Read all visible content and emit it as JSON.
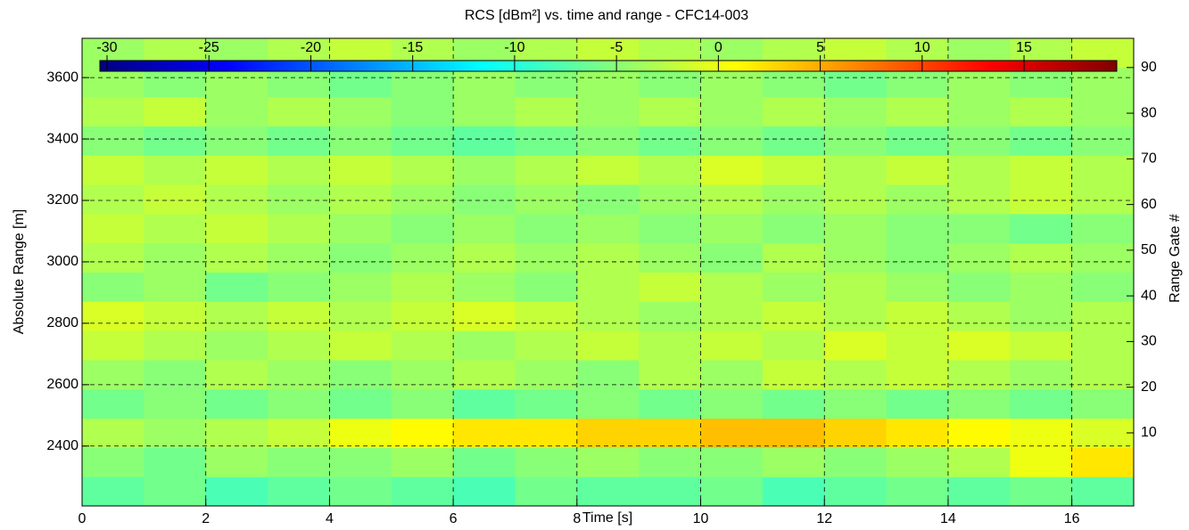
{
  "chart_data": {
    "type": "heatmap",
    "title": "RCS [dBm²] vs. time and range - CFC14-003",
    "x_label": "Time [s]",
    "y_label": "Absolute Range [m]",
    "y2_label": "Range Gate #",
    "xlim": [
      0,
      17
    ],
    "xticks": [
      0,
      2,
      4,
      6,
      8,
      10,
      12,
      14,
      16
    ],
    "ylim": [
      2205,
      3728
    ],
    "yticks": [
      2400,
      2600,
      2800,
      3000,
      3200,
      3400,
      3600
    ],
    "y2lim": [
      -6,
      96.4
    ],
    "y2ticks": [
      10,
      20,
      30,
      40,
      50,
      60,
      70,
      80,
      90
    ],
    "clim": [
      -30.35,
      19.55
    ],
    "cticks": [
      -30,
      -25,
      -20,
      -15,
      -10,
      -5,
      0,
      5,
      10,
      15
    ],
    "colormap": "jet",
    "grid": true,
    "z": [
      [
        -7,
        -6,
        -8,
        -7,
        -6,
        -7,
        -8,
        -6,
        -7,
        -7,
        -6,
        -8,
        -7,
        -6,
        -7,
        -6,
        -7
      ],
      [
        -5,
        -6,
        -4,
        -5,
        -5,
        -4,
        -6,
        -5,
        -4,
        -5,
        -5,
        -4,
        -5,
        -4,
        -3,
        0,
        2
      ],
      [
        -3,
        -4,
        -3,
        -2,
        0,
        1,
        2,
        2,
        3,
        3,
        4,
        4,
        3,
        2,
        1,
        0,
        -1
      ],
      [
        -6,
        -5,
        -6,
        -5,
        -6,
        -5,
        -7,
        -6,
        -5,
        -6,
        -5,
        -6,
        -5,
        -6,
        -5,
        -6,
        -5
      ],
      [
        -4,
        -5,
        -3,
        -4,
        -5,
        -4,
        -3,
        -4,
        -5,
        -3,
        -4,
        -2,
        -3,
        -2,
        -3,
        -4,
        -3
      ],
      [
        -2,
        -3,
        -4,
        -3,
        -2,
        -3,
        -4,
        -3,
        -2,
        -3,
        -2,
        -3,
        -1,
        -2,
        -1,
        -2,
        -3
      ],
      [
        -1,
        -2,
        -3,
        -2,
        -3,
        -2,
        -1,
        -2,
        -3,
        -4,
        -3,
        -2,
        -3,
        -2,
        -3,
        -4,
        -3
      ],
      [
        -5,
        -4,
        -6,
        -5,
        -4,
        -3,
        -4,
        -5,
        -3,
        -2,
        -3,
        -4,
        -3,
        -4,
        -5,
        -4,
        -5
      ],
      [
        -3,
        -4,
        -3,
        -4,
        -5,
        -4,
        -3,
        -4,
        -3,
        -4,
        -5,
        -3,
        -4,
        -5,
        -4,
        -3,
        -4
      ],
      [
        -2,
        -3,
        -2,
        -3,
        -4,
        -5,
        -4,
        -5,
        -4,
        -5,
        -4,
        -5,
        -4,
        -5,
        -5,
        -6,
        -5
      ],
      [
        -3,
        -2,
        -3,
        -4,
        -3,
        -4,
        -5,
        -4,
        -5,
        -4,
        -3,
        -4,
        -3,
        -4,
        -3,
        -2,
        -3
      ],
      [
        -2,
        -3,
        -2,
        -3,
        -2,
        -3,
        -4,
        -3,
        -2,
        -3,
        -1,
        -2,
        -3,
        -2,
        -3,
        -2,
        -3
      ],
      [
        -5,
        -6,
        -5,
        -6,
        -5,
        -6,
        -7,
        -6,
        -5,
        -6,
        -5,
        -6,
        -5,
        -6,
        -5,
        -6,
        -5
      ],
      [
        -3,
        -2,
        -4,
        -3,
        -4,
        -5,
        -4,
        -3,
        -4,
        -3,
        -4,
        -3,
        -4,
        -3,
        -4,
        -3,
        -4
      ],
      [
        -4,
        -5,
        -4,
        -5,
        -6,
        -5,
        -4,
        -5,
        -4,
        -5,
        -4,
        -5,
        -6,
        -5,
        -4,
        -5,
        -4
      ],
      [
        -4,
        -3,
        -4,
        -3,
        -2,
        -3,
        -4,
        -3,
        -2,
        -3,
        -4,
        -3,
        -2,
        -3,
        -4,
        -3,
        -2
      ]
    ]
  }
}
